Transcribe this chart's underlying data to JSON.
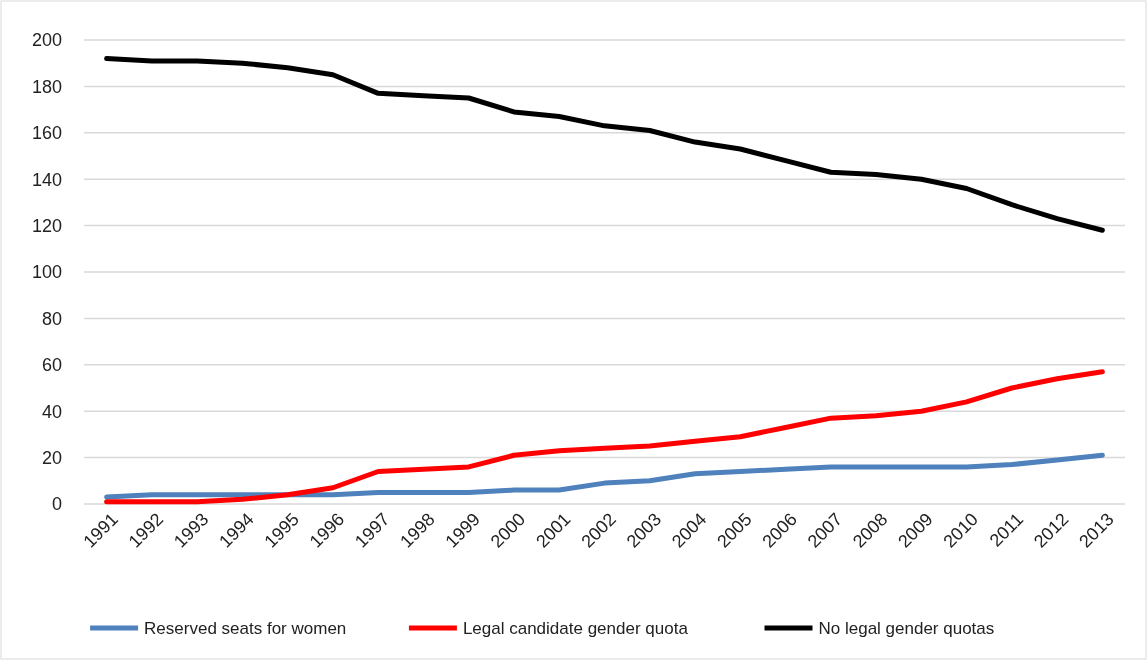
{
  "chart_data": {
    "type": "line",
    "categories": [
      "1991",
      "1992",
      "1993",
      "1994",
      "1995",
      "1996",
      "1997",
      "1998",
      "1999",
      "2000",
      "2001",
      "2002",
      "2003",
      "2004",
      "2005",
      "2006",
      "2007",
      "2008",
      "2009",
      "2010",
      "2011",
      "2012",
      "2013"
    ],
    "series": [
      {
        "name": "Reserved seats for women",
        "color": "#4f81bd",
        "values": [
          3,
          4,
          4,
          4,
          4,
          4,
          5,
          5,
          5,
          6,
          6,
          9,
          10,
          13,
          14,
          15,
          16,
          16,
          16,
          16,
          17,
          19,
          21
        ]
      },
      {
        "name": "Legal candidate gender quota",
        "color": "#ff0000",
        "values": [
          1,
          1,
          1,
          2,
          4,
          7,
          14,
          15,
          16,
          21,
          23,
          24,
          25,
          27,
          29,
          33,
          37,
          38,
          40,
          44,
          50,
          54,
          57
        ]
      },
      {
        "name": "No legal gender quotas",
        "color": "#000000",
        "values": [
          192,
          191,
          191,
          190,
          188,
          185,
          177,
          176,
          175,
          169,
          167,
          163,
          161,
          156,
          153,
          148,
          143,
          142,
          140,
          136,
          129,
          123,
          118
        ]
      }
    ],
    "ylim": [
      0,
      200
    ],
    "yticks": [
      0,
      20,
      40,
      60,
      80,
      100,
      120,
      140,
      160,
      180,
      200
    ],
    "grid": "y",
    "legend": "bottom",
    "marker": "none",
    "line_style": "solid"
  }
}
